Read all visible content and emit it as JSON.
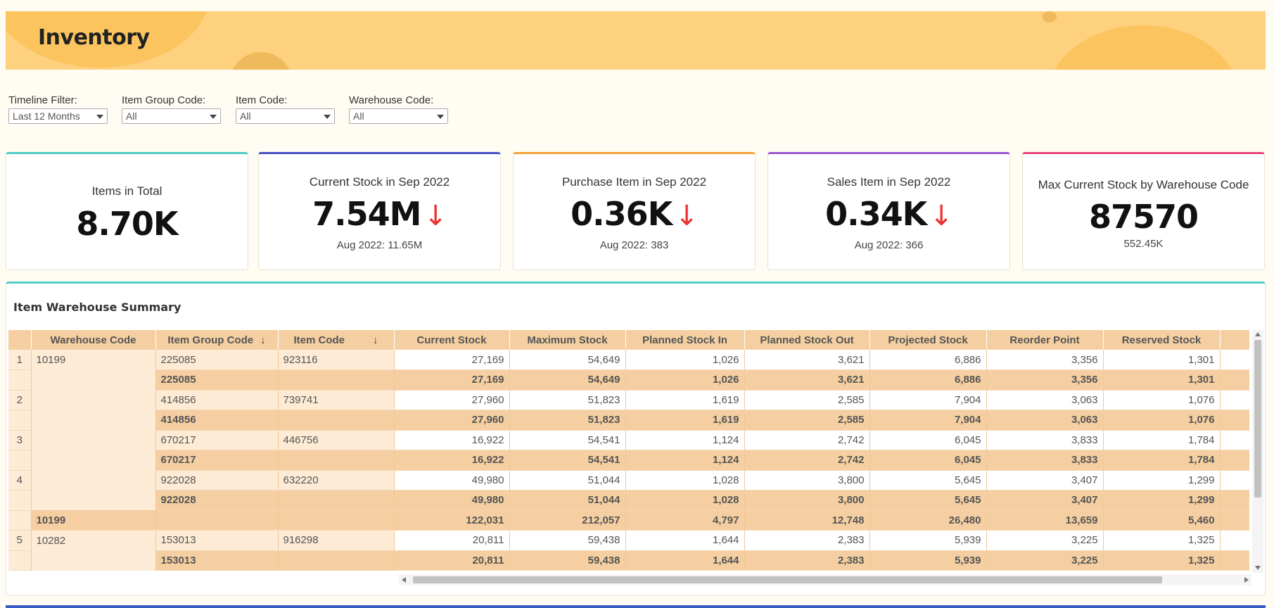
{
  "header": {
    "title": "Inventory"
  },
  "filters": [
    {
      "label": "Timeline Filter:",
      "value": "Last 12 Months"
    },
    {
      "label": "Item Group Code:",
      "value": "All"
    },
    {
      "label": "Item Code:",
      "value": "All"
    },
    {
      "label": "Warehouse Code:",
      "value": "All"
    }
  ],
  "kpis": [
    {
      "title": "Items in Total",
      "value": "8.70K",
      "sub": "",
      "trend": "",
      "color": "#4ecdc4"
    },
    {
      "title": "Current Stock in Sep 2022",
      "value": "7.54M",
      "sub": "Aug 2022: 11.65M",
      "trend": "↓",
      "color": "#4a4fc4"
    },
    {
      "title": "Purchase Item in Sep 2022",
      "value": "0.36K",
      "sub": "Aug 2022: 383",
      "trend": "↓",
      "color": "#f5a53a"
    },
    {
      "title": "Sales Item in Sep 2022",
      "value": "0.34K",
      "sub": "Aug 2022: 366",
      "trend": "↓",
      "color": "#9b59d0"
    },
    {
      "title": "Max Current Stock by Warehouse Code",
      "value": "87570",
      "sub": "552.45K",
      "trend": "",
      "color": "#e8457a"
    }
  ],
  "summary": {
    "title": "Item Warehouse Summary",
    "columns": [
      "Warehouse Code",
      "Item Group Code",
      "Item Code",
      "Current Stock",
      "Maximum Stock",
      "Planned Stock In",
      "Planned Stock Out",
      "Projected Stock",
      "Reorder Point",
      "Reserved Stock"
    ],
    "rows": [
      {
        "n": "1",
        "wh": "10199",
        "ig": "225085",
        "ic": "923116",
        "v": [
          "27,169",
          "54,649",
          "1,026",
          "3,621",
          "6,886",
          "3,356",
          "1,301"
        ]
      },
      {
        "sub": true,
        "ig": "225085",
        "v": [
          "27,169",
          "54,649",
          "1,026",
          "3,621",
          "6,886",
          "3,356",
          "1,301"
        ]
      },
      {
        "n": "2",
        "ig": "414856",
        "ic": "739741",
        "v": [
          "27,960",
          "51,823",
          "1,619",
          "2,585",
          "7,904",
          "3,063",
          "1,076"
        ]
      },
      {
        "sub": true,
        "ig": "414856",
        "v": [
          "27,960",
          "51,823",
          "1,619",
          "2,585",
          "7,904",
          "3,063",
          "1,076"
        ]
      },
      {
        "n": "3",
        "ig": "670217",
        "ic": "446756",
        "v": [
          "16,922",
          "54,541",
          "1,124",
          "2,742",
          "6,045",
          "3,833",
          "1,784"
        ]
      },
      {
        "sub": true,
        "ig": "670217",
        "v": [
          "16,922",
          "54,541",
          "1,124",
          "2,742",
          "6,045",
          "3,833",
          "1,784"
        ]
      },
      {
        "n": "4",
        "ig": "922028",
        "ic": "632220",
        "v": [
          "49,980",
          "51,044",
          "1,028",
          "3,800",
          "5,645",
          "3,407",
          "1,299"
        ]
      },
      {
        "sub": true,
        "ig": "922028",
        "v": [
          "49,980",
          "51,044",
          "1,028",
          "3,800",
          "5,645",
          "3,407",
          "1,299"
        ]
      },
      {
        "tot": true,
        "wh": "10199",
        "v": [
          "122,031",
          "212,057",
          "4,797",
          "12,748",
          "26,480",
          "13,659",
          "5,460"
        ]
      },
      {
        "n": "5",
        "wh": "10282",
        "ig": "153013",
        "ic": "916298",
        "v": [
          "20,811",
          "59,438",
          "1,644",
          "2,383",
          "5,939",
          "3,225",
          "1,325"
        ]
      },
      {
        "sub": true,
        "ig": "153013",
        "v": [
          "20,811",
          "59,438",
          "1,644",
          "2,383",
          "5,939",
          "3,225",
          "1,325"
        ]
      }
    ]
  }
}
